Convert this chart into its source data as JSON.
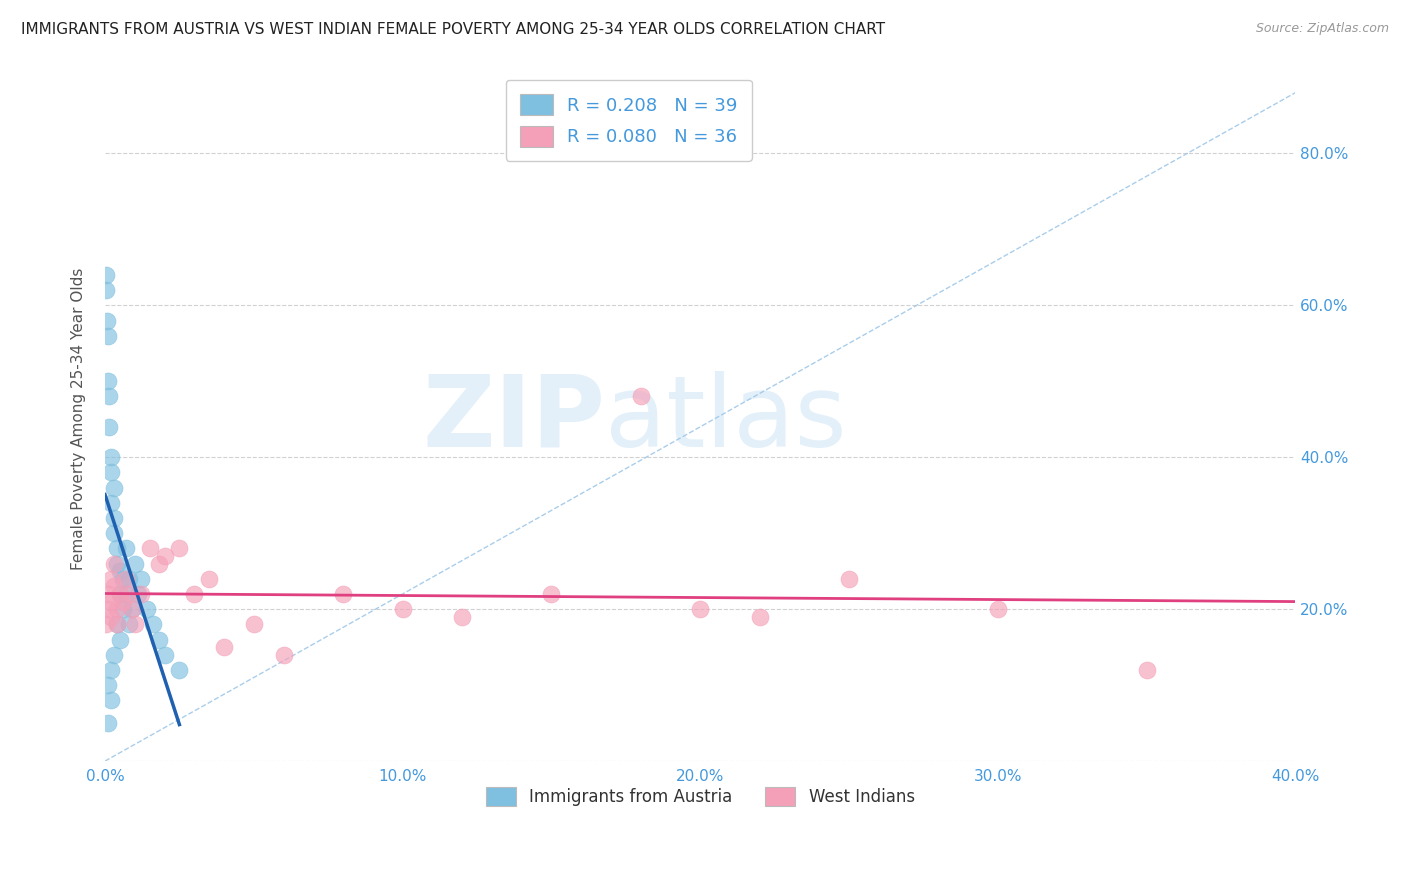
{
  "title": "IMMIGRANTS FROM AUSTRIA VS WEST INDIAN FEMALE POVERTY AMONG 25-34 YEAR OLDS CORRELATION CHART",
  "source": "Source: ZipAtlas.com",
  "ylabel": "Female Poverty Among 25-34 Year Olds",
  "watermark_zip": "ZIP",
  "watermark_atlas": "atlas",
  "legend1_label": "R = 0.208   N = 39",
  "legend2_label": "R = 0.080   N = 36",
  "legend1_bottom": "Immigrants from Austria",
  "legend2_bottom": "West Indians",
  "blue_color": "#7fbfdf",
  "pink_color": "#f4a0b8",
  "blue_line_color": "#2060b0",
  "pink_line_color": "#e04080",
  "dashed_line_color": "#a0c8e8",
  "title_color": "#222222",
  "label_color": "#4499dd",
  "xlim_min": 0.0,
  "xlim_max": 0.4,
  "ylim_min": 0.0,
  "ylim_max": 0.9,
  "xticks": [
    0.0,
    0.1,
    0.2,
    0.3,
    0.4
  ],
  "yticks": [
    0.0,
    0.2,
    0.4,
    0.6,
    0.8
  ],
  "ytick_labels_right": [
    "",
    "20.0%",
    "40.0%",
    "60.0%",
    "80.0%"
  ],
  "xtick_labels": [
    "0.0%",
    "10.0%",
    "20.0%",
    "30.0%",
    "40.0%"
  ],
  "blue_scatter_x": [
    0.0005,
    0.0005,
    0.0008,
    0.001,
    0.001,
    0.001,
    0.001,
    0.0015,
    0.0015,
    0.002,
    0.002,
    0.002,
    0.002,
    0.002,
    0.003,
    0.003,
    0.003,
    0.003,
    0.004,
    0.004,
    0.004,
    0.005,
    0.005,
    0.005,
    0.006,
    0.006,
    0.007,
    0.007,
    0.008,
    0.008,
    0.009,
    0.01,
    0.011,
    0.012,
    0.014,
    0.016,
    0.018,
    0.02,
    0.025
  ],
  "blue_scatter_y": [
    0.62,
    0.64,
    0.58,
    0.5,
    0.56,
    0.05,
    0.1,
    0.44,
    0.48,
    0.4,
    0.38,
    0.34,
    0.08,
    0.12,
    0.36,
    0.32,
    0.3,
    0.14,
    0.28,
    0.26,
    0.18,
    0.25,
    0.22,
    0.16,
    0.24,
    0.2,
    0.22,
    0.28,
    0.24,
    0.18,
    0.2,
    0.26,
    0.22,
    0.24,
    0.2,
    0.18,
    0.16,
    0.14,
    0.12
  ],
  "pink_scatter_x": [
    0.0005,
    0.001,
    0.001,
    0.002,
    0.002,
    0.002,
    0.003,
    0.003,
    0.004,
    0.004,
    0.005,
    0.006,
    0.007,
    0.008,
    0.009,
    0.01,
    0.012,
    0.015,
    0.018,
    0.02,
    0.025,
    0.03,
    0.035,
    0.04,
    0.05,
    0.06,
    0.08,
    0.1,
    0.12,
    0.15,
    0.2,
    0.25,
    0.3,
    0.18,
    0.22,
    0.35
  ],
  "pink_scatter_y": [
    0.18,
    0.2,
    0.22,
    0.19,
    0.24,
    0.21,
    0.26,
    0.23,
    0.2,
    0.18,
    0.22,
    0.21,
    0.24,
    0.22,
    0.2,
    0.18,
    0.22,
    0.28,
    0.26,
    0.27,
    0.28,
    0.22,
    0.24,
    0.15,
    0.18,
    0.14,
    0.22,
    0.2,
    0.19,
    0.22,
    0.2,
    0.24,
    0.2,
    0.48,
    0.19,
    0.12
  ]
}
